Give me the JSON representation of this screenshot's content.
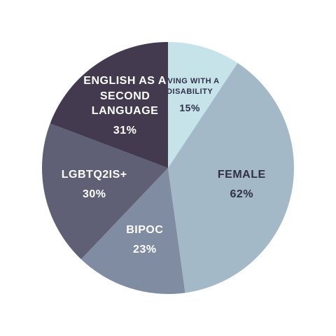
{
  "chart_data": {
    "type": "pie",
    "categories": [
      "LIVING WITH A DISABILITY",
      "FEMALE",
      "BIPOC",
      "LGBTQ2IS+",
      "ENGLISH AS A SECOND LANGUAGE"
    ],
    "values": [
      15,
      62,
      23,
      30,
      31
    ],
    "value_labels": [
      "15%",
      "62%",
      "23%",
      "30%",
      "31%"
    ],
    "colors": [
      "#c6e3ea",
      "#a4b9c7",
      "#7f8ca1",
      "#5f6076",
      "#443a4f"
    ],
    "label_colors": [
      "#2f3047",
      "#2f3047",
      "#ffffff",
      "#ffffff",
      "#ffffff"
    ]
  }
}
